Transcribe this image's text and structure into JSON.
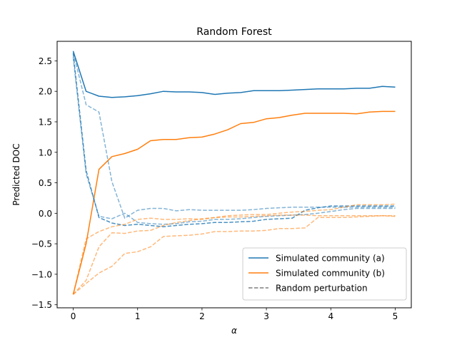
{
  "chart_data": {
    "type": "line",
    "title": "Random Forest",
    "xlabel": "α",
    "ylabel": "Predicted DOC",
    "xlim": [
      -0.25,
      5.25
    ],
    "ylim": [
      -1.55,
      2.82
    ],
    "xticks": [
      0,
      1,
      2,
      3,
      4,
      5
    ],
    "yticks": [
      -1.5,
      -1.0,
      -0.5,
      0.0,
      0.5,
      1.0,
      1.5,
      2.0,
      2.5
    ],
    "ytick_labels": [
      "−1.5",
      "−1.0",
      "−0.5",
      "0.0",
      "0.5",
      "1.0",
      "1.5",
      "2.0",
      "2.5"
    ],
    "grid": false,
    "legend_position": "lower-right",
    "x": [
      0,
      0.2,
      0.4,
      0.6,
      0.8,
      1.0,
      1.2,
      1.4,
      1.6,
      1.8,
      2.0,
      2.2,
      2.4,
      2.6,
      2.8,
      3.0,
      3.2,
      3.4,
      3.6,
      3.8,
      4.0,
      4.2,
      4.4,
      4.6,
      4.8,
      5.0
    ],
    "series": [
      {
        "name": "Simulated community (a)",
        "color": "#1f77b4",
        "style": "solid",
        "opacity": 1,
        "values": [
          2.66,
          2.0,
          1.92,
          1.9,
          1.91,
          1.93,
          1.96,
          2.0,
          1.99,
          1.99,
          1.98,
          1.95,
          1.97,
          1.98,
          2.01,
          2.01,
          2.01,
          2.02,
          2.03,
          2.04,
          2.04,
          2.04,
          2.05,
          2.05,
          2.08,
          2.07
        ]
      },
      {
        "name": "Simulated community (b)",
        "color": "#ff7f0e",
        "style": "solid",
        "opacity": 1,
        "values": [
          -1.33,
          -0.5,
          0.72,
          0.93,
          0.98,
          1.05,
          1.19,
          1.21,
          1.21,
          1.24,
          1.25,
          1.3,
          1.37,
          1.47,
          1.49,
          1.55,
          1.57,
          1.61,
          1.64,
          1.64,
          1.64,
          1.64,
          1.63,
          1.66,
          1.67,
          1.67
        ]
      },
      {
        "name": "",
        "color": "#1f77b4",
        "style": "dashed",
        "opacity": 0.55,
        "values": [
          2.64,
          1.78,
          1.66,
          0.52,
          -0.08,
          0.05,
          0.08,
          0.08,
          0.04,
          0.06,
          0.05,
          0.05,
          0.05,
          0.05,
          0.06,
          0.08,
          0.09,
          0.1,
          0.1,
          0.1,
          0.1,
          0.1,
          0.1,
          0.1,
          0.1,
          0.1
        ]
      },
      {
        "name": "",
        "color": "#1f77b4",
        "style": "dashed",
        "opacity": 0.55,
        "values": [
          2.56,
          0.65,
          -0.05,
          -0.09,
          0.0,
          -0.15,
          -0.17,
          -0.18,
          -0.17,
          -0.14,
          -0.13,
          -0.1,
          -0.1,
          -0.09,
          -0.07,
          -0.05,
          -0.04,
          -0.03,
          -0.02,
          0.0,
          0.03,
          0.06,
          0.08,
          0.08,
          0.08,
          0.08
        ]
      },
      {
        "name": "",
        "color": "#1f77b4",
        "style": "dashed",
        "opacity": 0.8,
        "values": [
          2.62,
          0.7,
          -0.07,
          -0.16,
          -0.2,
          -0.18,
          -0.2,
          -0.22,
          -0.2,
          -0.18,
          -0.17,
          -0.15,
          -0.15,
          -0.14,
          -0.13,
          -0.1,
          -0.09,
          -0.08,
          0.05,
          0.09,
          0.12,
          0.12,
          0.12,
          0.12,
          0.12,
          0.12
        ]
      },
      {
        "name": "",
        "color": "#ff7f0e",
        "style": "dashed",
        "opacity": 0.55,
        "values": [
          -1.33,
          -0.42,
          -0.3,
          -0.22,
          -0.18,
          -0.1,
          -0.08,
          -0.1,
          -0.1,
          -0.09,
          -0.1,
          -0.07,
          -0.04,
          -0.03,
          -0.02,
          -0.02,
          0.0,
          0.02,
          0.03,
          0.05,
          0.06,
          0.1,
          0.14,
          0.14,
          0.14,
          0.15
        ]
      },
      {
        "name": "",
        "color": "#ff7f0e",
        "style": "dashed",
        "opacity": 0.55,
        "values": [
          -1.33,
          -1.1,
          -0.55,
          -0.32,
          -0.33,
          -0.29,
          -0.28,
          -0.2,
          -0.15,
          -0.12,
          -0.09,
          -0.07,
          -0.06,
          -0.06,
          -0.05,
          -0.04,
          -0.03,
          -0.03,
          -0.03,
          -0.04,
          -0.04,
          -0.04,
          -0.04,
          -0.04,
          -0.04,
          -0.05
        ]
      },
      {
        "name": "",
        "color": "#ff7f0e",
        "style": "dashed",
        "opacity": 0.55,
        "values": [
          -1.33,
          -1.15,
          -0.98,
          -0.87,
          -0.66,
          -0.63,
          -0.55,
          -0.38,
          -0.37,
          -0.36,
          -0.34,
          -0.3,
          -0.3,
          -0.29,
          -0.29,
          -0.28,
          -0.25,
          -0.25,
          -0.24,
          -0.07,
          -0.07,
          -0.07,
          -0.06,
          -0.05,
          -0.04,
          -0.04
        ]
      }
    ],
    "legend": [
      {
        "label": "Simulated community (a)",
        "color": "#1f77b4",
        "style": "solid"
      },
      {
        "label": "Simulated community (b)",
        "color": "#ff7f0e",
        "style": "solid"
      },
      {
        "label": "Random perturbation",
        "color": "#7f7f7f",
        "style": "dashed"
      }
    ]
  }
}
